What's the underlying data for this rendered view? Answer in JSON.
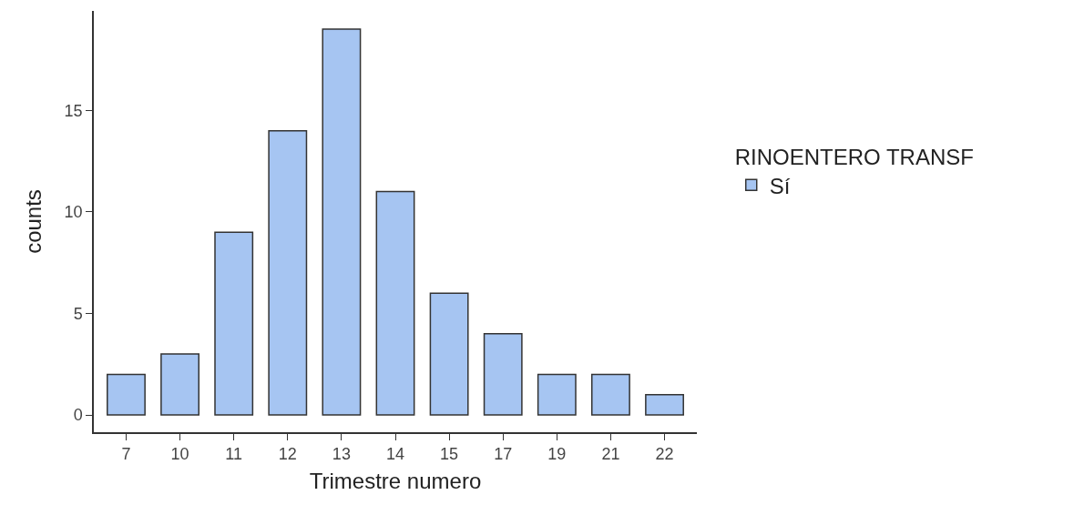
{
  "chart_data": {
    "type": "bar",
    "xlabel": "Trimestre numero",
    "ylabel": "counts",
    "legend_title": "RINOENTERO TRANSF",
    "categories": [
      "7",
      "10",
      "11",
      "12",
      "13",
      "14",
      "15",
      "17",
      "19",
      "21",
      "22"
    ],
    "series": [
      {
        "name": "Sí",
        "color": "#a6c5f2",
        "values": [
          2,
          3,
          9,
          14,
          19,
          11,
          6,
          4,
          2,
          2,
          1
        ]
      }
    ],
    "ylim": [
      -0.85,
      19.9
    ],
    "yticks": [
      0,
      5,
      10,
      15
    ],
    "legend": "right"
  }
}
